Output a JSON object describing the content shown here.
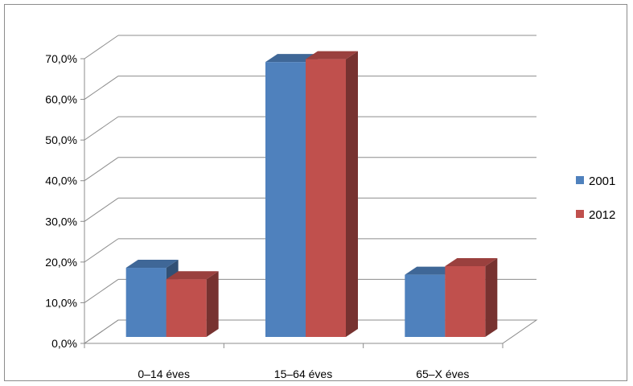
{
  "chart_data": {
    "type": "bar",
    "title": "",
    "xlabel": "",
    "ylabel": "",
    "categories": [
      "0–14 éves",
      "15–64 éves",
      "65–X éves"
    ],
    "series": [
      {
        "name": "2001",
        "values": [
          0.17,
          0.676,
          0.153
        ],
        "color": "#4f81bd"
      },
      {
        "name": "2012",
        "values": [
          0.142,
          0.683,
          0.174
        ],
        "color": "#c0504d"
      }
    ],
    "ylim": [
      0,
      0.7
    ],
    "yticks": [
      "0,0%",
      "10,0%",
      "20,0%",
      "30,0%",
      "40,0%",
      "50,0%",
      "60,0%",
      "70,0%"
    ],
    "grid": true,
    "legend_position": "right",
    "style": "3d-clustered-column"
  }
}
